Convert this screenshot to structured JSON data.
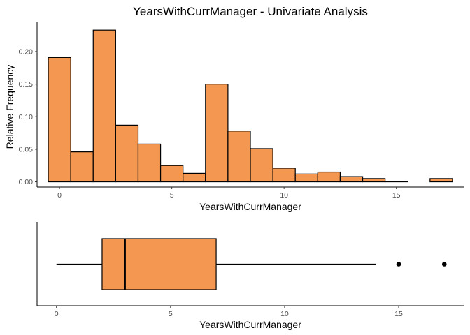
{
  "chart_data": [
    {
      "type": "histogram",
      "title": "YearsWithCurrManager - Univariate Analysis",
      "xlabel": "YearsWithCurrManager",
      "ylabel": "Relative Frequency",
      "xlim": [
        -1.0,
        18.0
      ],
      "ylim": [
        -0.008,
        0.245
      ],
      "x_ticks": [
        0,
        5,
        10,
        15
      ],
      "y_ticks": [
        0.0,
        0.05,
        0.1,
        0.15,
        0.2
      ],
      "y_tick_labels": [
        "0.00",
        "0.05",
        "0.10",
        "0.15",
        "0.20"
      ],
      "bin_width": 1.0,
      "bin_start": -0.5,
      "values": [
        0.191,
        0.046,
        0.233,
        0.087,
        0.058,
        0.025,
        0.013,
        0.15,
        0.078,
        0.051,
        0.021,
        0.012,
        0.015,
        0.008,
        0.005,
        0.001,
        0.0,
        0.005
      ],
      "fill_color": "#F39751",
      "stroke_color": "#000000",
      "grid": false
    },
    {
      "type": "boxplot",
      "xlabel": "YearsWithCurrManager",
      "xlim": [
        -0.85,
        17.85
      ],
      "x_ticks": [
        0,
        5,
        10,
        15
      ],
      "min": 0,
      "q1": 2,
      "median": 3,
      "q3": 7,
      "max": 14,
      "outliers": [
        15,
        17
      ],
      "fill_color": "#F39751",
      "stroke_color": "#000000",
      "grid": false
    }
  ]
}
